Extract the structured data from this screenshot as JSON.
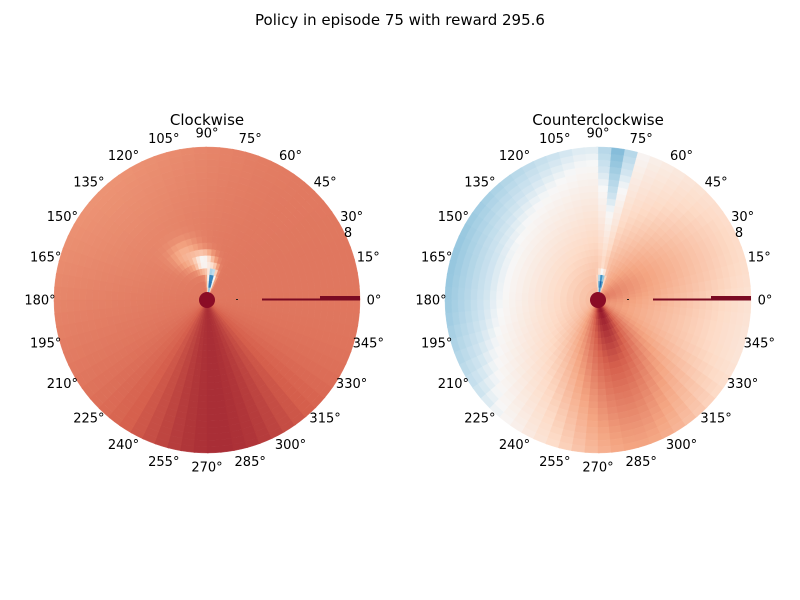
{
  "chart_data": {
    "title": "Policy in episode 75 with reward 295.6",
    "type": "heatmap",
    "projection": "polar",
    "angle_ticks": [
      "0°",
      "15°",
      "30°",
      "45°",
      "60°",
      "75°",
      "90°",
      "105°",
      "120°",
      "135°",
      "150°",
      "165°",
      "180°",
      "195°",
      "210°",
      "225°",
      "240°",
      "255°",
      "270°",
      "285°",
      "300°",
      "315°",
      "330°",
      "345°"
    ],
    "radial_tick": "8",
    "radial_range": [
      0,
      8
    ],
    "colormap": "RdBu_r",
    "colors": {
      "dark_red": "#8b0c26",
      "red": "#c0282e",
      "white": "#f7f7f7",
      "light_blue": "#d1e5f0",
      "blue": "#2166ac"
    },
    "panels": [
      {
        "title": "Clockwise",
        "level": 0.86,
        "lobe_color": "#ffffff",
        "blue_pocket": true
      },
      {
        "title": "Counterclockwise",
        "level": 0.55,
        "lobe_color": "#c0282e",
        "blue_pocket": true
      }
    ]
  }
}
